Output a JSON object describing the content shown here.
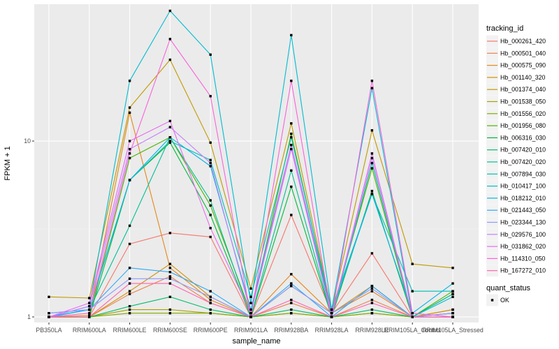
{
  "chart_data": {
    "type": "line",
    "xlabel": "sample_name",
    "ylabel": "FPKM + 1",
    "y_scale": "log10",
    "ylim": [
      0.93,
      60
    ],
    "y_ticks": [
      1,
      10
    ],
    "y_tick_labels": [
      "1",
      "10"
    ],
    "grid": true,
    "legend_position": "right",
    "categories": [
      "PB350LA",
      "RRIM600LA",
      "RRIM600LE",
      "RRIM600SE",
      "RRIM600PE",
      "RRIM901LA",
      "RRIM928BA",
      "RRIM928LA",
      "RRIM928LE",
      "RRIM105LA_Control",
      "RRIM105LA_Stressed"
    ],
    "color_legend_title": "tracking_id",
    "shape_legend_title": "quant_status",
    "shape_legend_items": [
      "OK"
    ],
    "series": [
      {
        "name": "Hb_000261_420",
        "color": "#F8766D",
        "values": [
          1.0,
          1.0,
          2.6,
          3.0,
          2.85,
          1.0,
          3.8,
          1.05,
          2.3,
          1.0,
          1.05
        ]
      },
      {
        "name": "Hb_000501_040",
        "color": "#EF7F49",
        "values": [
          1.0,
          1.0,
          1.35,
          1.7,
          1.2,
          1.0,
          1.2,
          1.0,
          1.25,
          1.0,
          1.05
        ]
      },
      {
        "name": "Hb_000575_090",
        "color": "#E4881C",
        "values": [
          1.0,
          1.02,
          14.5,
          1.9,
          1.25,
          1.0,
          1.75,
          1.05,
          1.4,
          1.0,
          1.1
        ]
      },
      {
        "name": "Hb_001140_320",
        "color": "#D38F00",
        "values": [
          1.0,
          1.0,
          1.4,
          2.0,
          1.3,
          1.0,
          1.5,
          1.05,
          1.5,
          1.0,
          1.1
        ]
      },
      {
        "name": "Hb_001374_040",
        "color": "#C09A00",
        "values": [
          1.3,
          1.28,
          15.5,
          29.0,
          9.8,
          1.45,
          12.6,
          1.1,
          11.5,
          2.0,
          1.9
        ]
      },
      {
        "name": "Hb_001538_050",
        "color": "#A6A100",
        "values": [
          1.0,
          1.0,
          1.1,
          1.1,
          1.05,
          1.0,
          1.05,
          1.0,
          1.05,
          1.0,
          1.0
        ]
      },
      {
        "name": "Hb_001556_020",
        "color": "#82AB00",
        "values": [
          1.0,
          1.0,
          1.05,
          1.05,
          1.05,
          1.0,
          1.05,
          1.0,
          1.05,
          1.0,
          1.0
        ]
      },
      {
        "name": "Hb_001956_080",
        "color": "#4BB400",
        "values": [
          1.0,
          1.0,
          8.0,
          10.5,
          4.3,
          1.05,
          11.0,
          1.05,
          7.0,
          1.0,
          1.4
        ]
      },
      {
        "name": "Hb_006316_030",
        "color": "#00BA38",
        "values": [
          1.0,
          1.0,
          6.0,
          9.8,
          3.8,
          1.0,
          5.5,
          1.0,
          5.2,
          1.0,
          1.35
        ]
      },
      {
        "name": "Hb_007420_010",
        "color": "#00BE6C",
        "values": [
          1.0,
          1.0,
          1.15,
          1.3,
          1.1,
          1.0,
          1.1,
          1.0,
          1.1,
          1.0,
          1.0
        ]
      },
      {
        "name": "Hb_007420_020",
        "color": "#00C094",
        "values": [
          1.0,
          1.1,
          3.3,
          10.5,
          4.6,
          1.0,
          6.8,
          1.0,
          7.5,
          1.0,
          1.35
        ]
      },
      {
        "name": "Hb_007894_030",
        "color": "#00C0B5",
        "values": [
          1.0,
          1.1,
          6.0,
          10.0,
          7.8,
          1.3,
          10.5,
          1.1,
          5.0,
          1.4,
          1.4
        ]
      },
      {
        "name": "Hb_010417_100",
        "color": "#00BCD1",
        "values": [
          1.0,
          1.15,
          22.0,
          55.0,
          31.0,
          1.2,
          40.0,
          1.1,
          20.0,
          1.0,
          1.3
        ]
      },
      {
        "name": "Hb_018212_010",
        "color": "#00B5E8",
        "values": [
          1.0,
          1.1,
          6.0,
          10.5,
          7.2,
          1.1,
          9.5,
          1.05,
          5.0,
          1.05,
          1.55
        ]
      },
      {
        "name": "Hb_021443_050",
        "color": "#2CA9FA",
        "values": [
          1.05,
          1.1,
          1.9,
          1.8,
          1.4,
          1.0,
          1.55,
          1.0,
          1.5,
          1.0,
          1.05
        ]
      },
      {
        "name": "Hb_023344_130",
        "color": "#8D99FF",
        "values": [
          1.05,
          1.1,
          1.65,
          1.65,
          1.3,
          1.0,
          1.5,
          1.05,
          1.45,
          1.0,
          1.05
        ]
      },
      {
        "name": "Hb_029576_100",
        "color": "#C580FF",
        "values": [
          1.0,
          1.15,
          9.0,
          12.0,
          7.5,
          1.05,
          9.0,
          1.0,
          8.0,
          1.0,
          1.0
        ]
      },
      {
        "name": "Hb_031862_020",
        "color": "#E96AF2",
        "values": [
          1.0,
          1.2,
          10.0,
          13.0,
          3.2,
          1.05,
          9.5,
          1.0,
          8.5,
          1.0,
          1.0
        ]
      },
      {
        "name": "Hb_114310_050",
        "color": "#FA62DB",
        "values": [
          1.0,
          1.05,
          8.5,
          38.0,
          18.0,
          1.0,
          22.0,
          1.0,
          22.0,
          1.05,
          1.0
        ]
      },
      {
        "name": "Hb_167272_010",
        "color": "#FF64B0",
        "values": [
          1.0,
          1.0,
          1.55,
          1.55,
          1.2,
          1.0,
          1.25,
          1.0,
          1.2,
          1.0,
          1.0
        ]
      }
    ]
  }
}
